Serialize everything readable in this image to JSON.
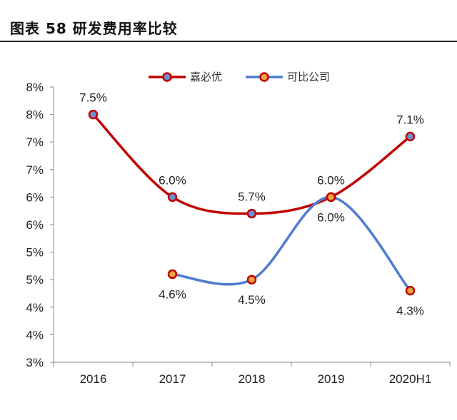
{
  "figure": {
    "title": "图表 58 研发费用率比较"
  },
  "chart_data": {
    "type": "line",
    "categories": [
      "2016",
      "2017",
      "2018",
      "2019",
      "2020H1"
    ],
    "y_ticks": [
      "3%",
      "4%",
      "4%",
      "5%",
      "5%",
      "6%",
      "6%",
      "7%",
      "7%",
      "8%",
      "8%"
    ],
    "ylim": [
      3.0,
      8.0
    ],
    "legend_position": "top-center",
    "series": [
      {
        "name": "嘉必优",
        "color": "#c00000",
        "marker_fill": "#6f8fd0",
        "values": [
          7.5,
          6.0,
          5.7,
          6.0,
          7.1
        ],
        "labels": [
          "7.5%",
          "6.0%",
          "5.7%",
          "6.0%",
          "7.1%"
        ]
      },
      {
        "name": "可比公司",
        "color": "#4f7ccf",
        "marker_fill": "#f2a440",
        "marker_stroke": "#c00000",
        "values": [
          null,
          4.6,
          4.5,
          6.0,
          4.3
        ],
        "labels": [
          null,
          "4.6%",
          "4.5%",
          "6.0%",
          "4.3%"
        ]
      }
    ]
  }
}
